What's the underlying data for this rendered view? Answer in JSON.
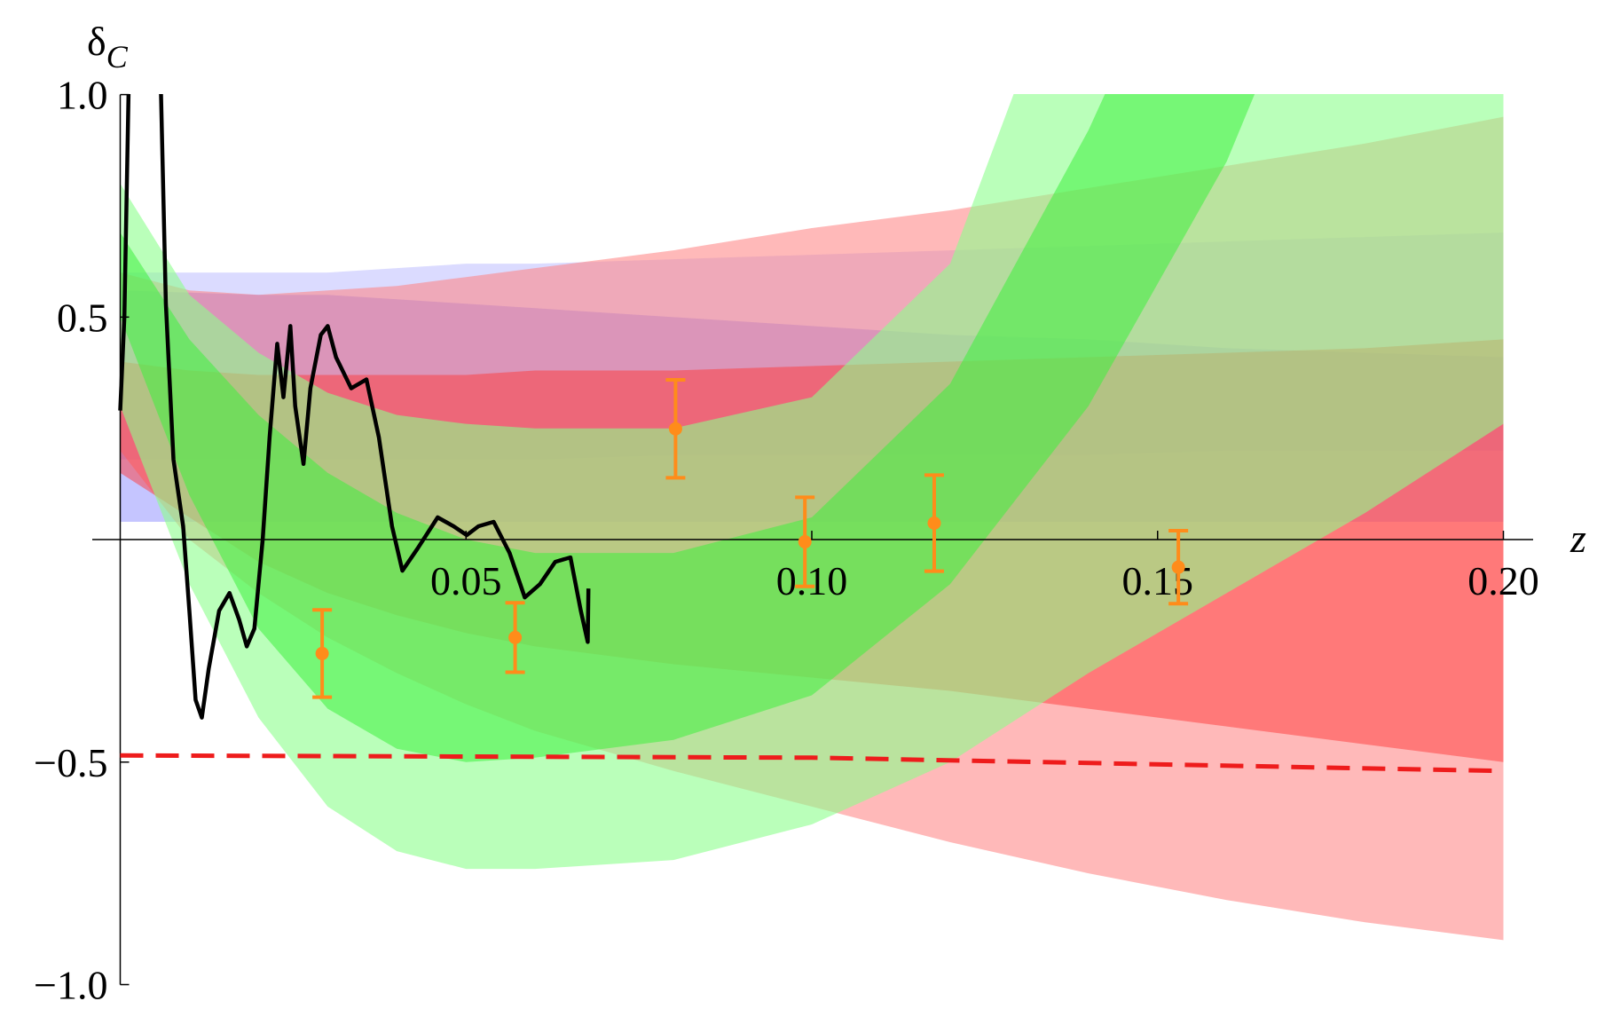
{
  "chart_data": {
    "type": "line",
    "ylabel": {
      "symbol": "δ",
      "subscript": "C"
    },
    "xlabel": "z",
    "xlim": [
      0,
      0.2
    ],
    "ylim": [
      -1,
      1
    ],
    "xticks": [
      0.05,
      {
        "value": 0.1,
        "label": "0.10"
      },
      0.15,
      {
        "value": 0.2,
        "label": "0.20"
      }
    ],
    "yticks": [
      {
        "value": -1,
        "label": "−1.0"
      },
      {
        "value": -0.5,
        "label": "−0.5"
      },
      0.5,
      {
        "value": 1,
        "label": "1.0"
      }
    ],
    "band_x": [
      0,
      0.01,
      0.02,
      0.03,
      0.04,
      0.05,
      0.06,
      0.08,
      0.1,
      0.12,
      0.14,
      0.16,
      0.18,
      0.2
    ],
    "bands": [
      {
        "color": "#6f6fff",
        "opacity": 0.25,
        "upper": [
          0.6,
          0.6,
          0.6,
          0.6,
          0.61,
          0.62,
          0.62,
          0.63,
          0.64,
          0.65,
          0.66,
          0.67,
          0.68,
          0.69
        ],
        "lower": [
          0.18,
          0.18,
          0.18,
          0.18,
          0.18,
          0.18,
          0.18,
          0.19,
          0.19,
          0.19,
          0.19,
          0.2,
          0.2,
          0.2
        ]
      },
      {
        "color": "#6f6fff",
        "opacity": 0.4,
        "upper": [
          0.56,
          0.555,
          0.55,
          0.55,
          0.54,
          0.53,
          0.52,
          0.5,
          0.48,
          0.46,
          0.45,
          0.43,
          0.42,
          0.41
        ],
        "lower": [
          0.04,
          0.04,
          0.04,
          0.04,
          0.04,
          0.04,
          0.04,
          0.04,
          0.04,
          0.04,
          0.04,
          0.04,
          0.04,
          0.04
        ]
      },
      {
        "color": "#ff7f7f",
        "opacity": 0.55,
        "upper": [
          0.6,
          0.56,
          0.55,
          0.56,
          0.57,
          0.59,
          0.61,
          0.65,
          0.7,
          0.74,
          0.79,
          0.84,
          0.89,
          0.95
        ],
        "lower": [
          0.2,
          0.0,
          -0.12,
          -0.22,
          -0.3,
          -0.37,
          -0.43,
          -0.52,
          -0.6,
          -0.68,
          -0.75,
          -0.81,
          -0.86,
          -0.9
        ]
      },
      {
        "color": "#ff3a3a",
        "opacity": 0.5,
        "upper": [
          0.4,
          0.38,
          0.37,
          0.37,
          0.37,
          0.37,
          0.38,
          0.38,
          0.39,
          0.4,
          0.41,
          0.42,
          0.43,
          0.45
        ],
        "lower": [
          0.15,
          0.05,
          -0.05,
          -0.12,
          -0.17,
          -0.21,
          -0.24,
          -0.28,
          -0.31,
          -0.34,
          -0.38,
          -0.42,
          -0.46,
          -0.5
        ]
      },
      {
        "color": "#8cff8c",
        "opacity": 0.6,
        "upper": [
          0.8,
          0.55,
          0.42,
          0.33,
          0.28,
          0.26,
          0.25,
          0.25,
          0.32,
          0.62,
          1.45,
          2.2,
          3.0,
          3.8
        ],
        "lower": [
          0.3,
          -0.1,
          -0.4,
          -0.6,
          -0.7,
          -0.74,
          -0.74,
          -0.72,
          -0.64,
          -0.5,
          -0.3,
          -0.12,
          0.06,
          0.26
        ]
      },
      {
        "color": "#3ef03e",
        "opacity": 0.55,
        "upper": [
          0.69,
          0.45,
          0.28,
          0.15,
          0.06,
          0.0,
          -0.03,
          -0.03,
          0.05,
          0.35,
          0.92,
          1.6,
          2.4,
          3.3
        ],
        "lower": [
          0.5,
          0.1,
          -0.2,
          -0.38,
          -0.47,
          -0.5,
          -0.49,
          -0.45,
          -0.35,
          -0.1,
          0.3,
          0.85,
          1.6,
          2.4
        ]
      }
    ],
    "series": [
      {
        "color": "#000000",
        "dash": false,
        "x": [
          0,
          0.0006,
          0.0012,
          0.0035,
          0.0059,
          0.0066,
          0.0077,
          0.0091,
          0.01,
          0.0109,
          0.0118,
          0.0128,
          0.0143,
          0.0158,
          0.0172,
          0.0183,
          0.0194,
          0.0206,
          0.0216,
          0.0227,
          0.0236,
          0.0246,
          0.0253,
          0.0265,
          0.0275,
          0.029,
          0.03,
          0.0312,
          0.0334,
          0.0356,
          0.0374,
          0.0393,
          0.0408,
          0.043,
          0.0459,
          0.0482,
          0.0501,
          0.0518,
          0.054,
          0.0563,
          0.0585,
          0.0607,
          0.0629,
          0.0651,
          0.0666,
          0.0676,
          0.0677
        ],
        "values": [
          0.29,
          0.5,
          1.0,
          1.6,
          1.0,
          0.53,
          0.18,
          0.03,
          -0.16,
          -0.36,
          -0.4,
          -0.29,
          -0.16,
          -0.12,
          -0.18,
          -0.24,
          -0.2,
          0.0,
          0.23,
          0.44,
          0.32,
          0.48,
          0.3,
          0.17,
          0.34,
          0.46,
          0.48,
          0.41,
          0.34,
          0.36,
          0.23,
          0.03,
          -0.07,
          -0.02,
          0.05,
          0.03,
          0.01,
          0.03,
          0.04,
          -0.03,
          -0.13,
          -0.1,
          -0.05,
          -0.04,
          -0.16,
          -0.23,
          -0.11
        ]
      },
      {
        "color": "#ee1c1c",
        "dash": true,
        "x": [
          0,
          0.1,
          0.2
        ],
        "values": [
          -0.485,
          -0.49,
          -0.52
        ]
      }
    ],
    "points": {
      "color": "#ff8c1a",
      "x": [
        0.0292,
        0.0571,
        0.0803,
        0.099,
        0.1177,
        0.153
      ],
      "y": [
        -0.256,
        -0.22,
        0.249,
        -0.005,
        0.037,
        -0.062
      ],
      "err": [
        0.098,
        0.078,
        0.11,
        0.1,
        0.108,
        0.082
      ]
    }
  }
}
